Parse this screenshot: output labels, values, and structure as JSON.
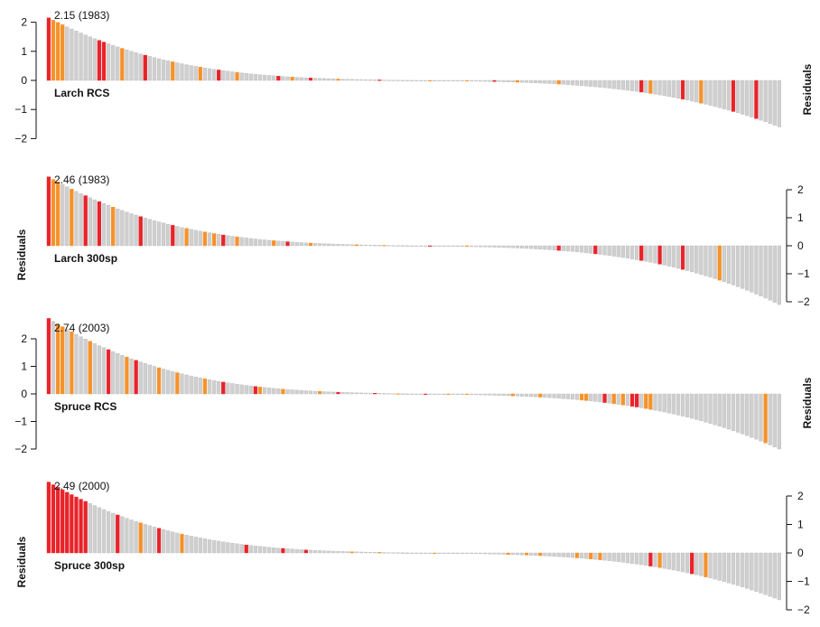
{
  "chart_data": [
    {
      "type": "bar",
      "panel": "Larch RCS",
      "ylabel": "Residuals",
      "axis_side": "left",
      "ylim": [
        -2.3,
        2.3
      ],
      "yticks": [
        2,
        1,
        0,
        -1,
        -2
      ],
      "max_label": "2.15 (1983)",
      "bars": 160,
      "max": 2.15,
      "min": -1.6,
      "highlight_red": [
        0,
        11,
        12,
        21,
        37,
        50,
        57,
        72,
        97,
        129,
        138,
        149,
        154
      ],
      "highlight_orange": [
        1,
        2,
        3,
        16,
        27,
        33,
        41,
        53,
        63,
        83,
        91,
        102,
        111,
        131,
        142
      ],
      "colors": {
        "red": "#e8232a",
        "orange": "#f5922b",
        "gray": "#cfcfcf"
      }
    },
    {
      "type": "bar",
      "panel": "Larch 300sp",
      "ylabel": "Residuals",
      "axis_side": "right",
      "ylim": [
        -2.3,
        2.3
      ],
      "yticks": [
        2,
        1,
        0,
        -1,
        -2
      ],
      "max_label": "2.46 (1983)",
      "bars": 160,
      "max": 2.46,
      "min": -2.1,
      "highlight_red": [
        0,
        8,
        11,
        20,
        27,
        38,
        52,
        83,
        111,
        119,
        129,
        133,
        138
      ],
      "highlight_orange": [
        1,
        2,
        5,
        14,
        30,
        34,
        36,
        41,
        49,
        57,
        67,
        73,
        91,
        146
      ],
      "colors": {
        "red": "#e8232a",
        "orange": "#f5922b",
        "gray": "#cfcfcf"
      }
    },
    {
      "type": "bar",
      "panel": "Spruce RCS",
      "ylabel": "Residuals",
      "axis_side": "left",
      "ylim": [
        -2.3,
        2.3
      ],
      "yticks": [
        2,
        1,
        0,
        -1,
        -2
      ],
      "max_label": "2.74 (2003)",
      "bars": 160,
      "max": 2.74,
      "min": -2.0,
      "highlight_red": [
        0,
        13,
        19,
        38,
        45,
        63,
        71,
        82,
        121,
        127,
        128
      ],
      "highlight_orange": [
        2,
        3,
        5,
        9,
        17,
        24,
        28,
        34,
        46,
        51,
        59,
        76,
        87,
        91,
        101,
        107,
        116,
        117,
        123,
        125,
        130,
        131,
        156
      ],
      "colors": {
        "red": "#e8232a",
        "orange": "#f5922b",
        "gray": "#cfcfcf"
      }
    },
    {
      "type": "bar",
      "panel": "Spruce 300sp",
      "ylabel": "Residuals",
      "axis_side": "right",
      "ylim": [
        -2.3,
        2.3
      ],
      "yticks": [
        2,
        1,
        0,
        -1,
        -2
      ],
      "max_label": "2.49 (2000)",
      "bars": 160,
      "max": 2.49,
      "min": -1.65,
      "highlight_red": [
        0,
        1,
        2,
        3,
        4,
        5,
        6,
        7,
        8,
        15,
        24,
        43,
        51,
        56,
        131,
        140
      ],
      "highlight_orange": [
        20,
        29,
        66,
        72,
        84,
        100,
        104,
        107,
        115,
        118,
        120,
        133,
        143
      ],
      "colors": {
        "red": "#e8232a",
        "orange": "#f5922b",
        "gray": "#cfcfcf"
      }
    }
  ]
}
